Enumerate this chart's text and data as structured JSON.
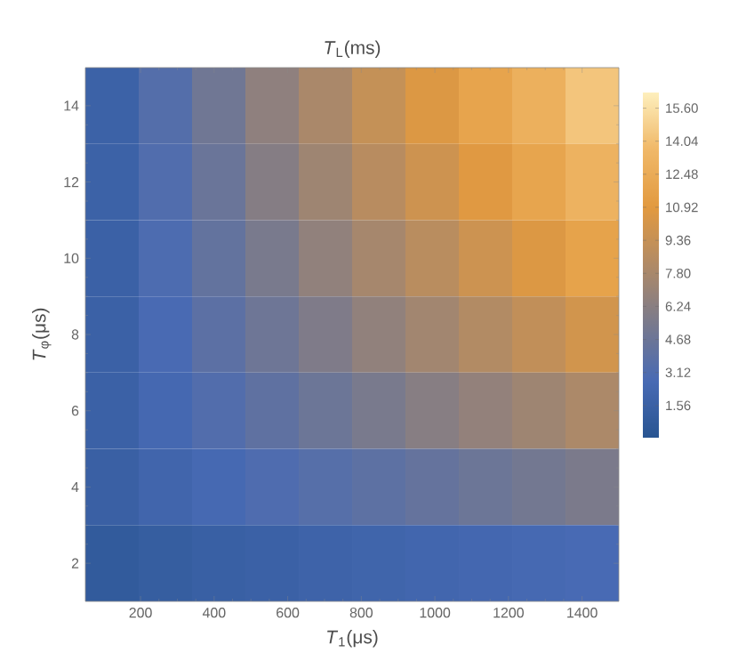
{
  "chart_data": {
    "type": "heatmap",
    "title": "*T*$_{L}$(ms)",
    "xlabel": "*T*$_{1}$(μs)",
    "ylabel": "*T*$_{φ}$(μs)",
    "xlim": [
      50,
      1500
    ],
    "xticks": [
      200,
      400,
      600,
      800,
      1000,
      1200,
      1400
    ],
    "ylim": [
      1,
      15
    ],
    "yticks": [
      2,
      4,
      6,
      8,
      10,
      12,
      14
    ],
    "clim": [
      0,
      16.38
    ],
    "cticks": [
      1.56,
      3.12,
      4.68,
      6.24,
      {
        "value": 7.8,
        "label": "7.80"
      },
      9.36,
      10.92,
      12.48,
      14.04,
      {
        "value": 15.6,
        "label": "15.60"
      }
    ],
    "cells": [
      [
        1.7,
        3.4,
        4.9,
        6.5,
        7.9,
        9.3,
        10.6,
        11.8,
        12.9,
        14.3
      ],
      [
        1.7,
        3.2,
        4.6,
        6.0,
        7.3,
        8.6,
        9.8,
        10.8,
        11.9,
        13.1
      ],
      [
        1.65,
        3.0,
        4.2,
        5.4,
        6.6,
        7.7,
        8.7,
        9.7,
        10.6,
        11.7
      ],
      [
        1.6,
        2.8,
        3.8,
        4.8,
        5.7,
        6.6,
        7.5,
        8.3,
        9.1,
        10.0
      ],
      [
        1.6,
        2.5,
        3.3,
        4.0,
        4.7,
        5.4,
        6.1,
        6.7,
        7.3,
        8.0
      ],
      [
        1.5,
        2.1,
        2.6,
        3.1,
        3.5,
        3.9,
        4.3,
        4.7,
        5.1,
        5.5
      ],
      [
        0.85,
        1.2,
        1.45,
        1.65,
        1.85,
        2.05,
        2.25,
        2.4,
        2.6,
        2.75
      ]
    ],
    "grid": false
  }
}
